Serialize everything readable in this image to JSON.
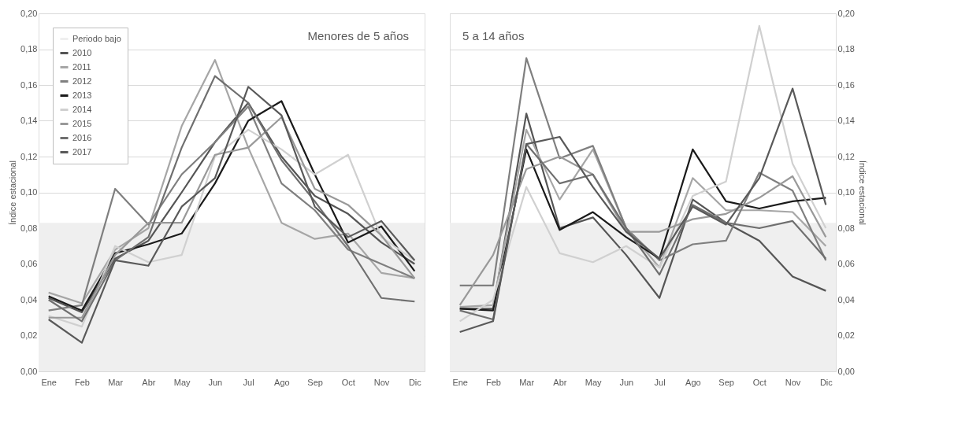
{
  "chart_data": [
    {
      "type": "line",
      "title": "Menores de 5 años",
      "ylabel": "Índice estacional",
      "categories": [
        "Ene",
        "Feb",
        "Mar",
        "Abr",
        "May",
        "Jun",
        "Jul",
        "Ago",
        "Sep",
        "Oct",
        "Nov",
        "Dic"
      ],
      "ylim": [
        0,
        0.2
      ],
      "yticks": [
        {
          "value": 0,
          "label": "0,00"
        },
        {
          "value": 0.02,
          "label": "0,02"
        },
        {
          "value": 0.04,
          "label": "0,04"
        },
        {
          "value": 0.06,
          "label": "0,06"
        },
        {
          "value": 0.08,
          "label": "0,08"
        },
        {
          "value": 0.1,
          "label": "0,10"
        },
        {
          "value": 0.12,
          "label": "0,12"
        },
        {
          "value": 0.14,
          "label": "0,14"
        },
        {
          "value": 0.16,
          "label": "0,16"
        },
        {
          "value": 0.18,
          "label": "0,18"
        },
        {
          "value": 0.2,
          "label": "0,20"
        }
      ],
      "grid": "y",
      "legend": "top left",
      "line_style": "solid",
      "bands": [
        {
          "axis": "y",
          "from": 0,
          "to": 0.083,
          "label": "Periodo bajo",
          "color": "#efefef"
        }
      ],
      "series": [
        {
          "name": "2010",
          "color": "#555555",
          "values": [
            0.041,
            0.033,
            0.063,
            0.073,
            0.1,
            0.128,
            0.15,
            0.12,
            0.098,
            0.088,
            0.072,
            0.06
          ]
        },
        {
          "name": "2011",
          "color": "#a6a6a6",
          "values": [
            0.044,
            0.038,
            0.068,
            0.08,
            0.137,
            0.174,
            0.125,
            0.083,
            0.074,
            0.077,
            0.055,
            0.052
          ]
        },
        {
          "name": "2012",
          "color": "#7f7f7f",
          "values": [
            0.034,
            0.037,
            0.102,
            0.082,
            0.11,
            0.128,
            0.148,
            0.105,
            0.09,
            0.068,
            0.06,
            0.052
          ]
        },
        {
          "name": "2013",
          "color": "#1a1a1a",
          "values": [
            0.042,
            0.034,
            0.066,
            0.071,
            0.077,
            0.105,
            0.14,
            0.151,
            0.11,
            0.072,
            0.081,
            0.056
          ]
        },
        {
          "name": "2014",
          "color": "#d0d0d0",
          "values": [
            0.031,
            0.025,
            0.07,
            0.061,
            0.065,
            0.12,
            0.135,
            0.124,
            0.11,
            0.121,
            0.075,
            0.062
          ]
        },
        {
          "name": "2015",
          "color": "#999999",
          "values": [
            0.03,
            0.03,
            0.065,
            0.083,
            0.083,
            0.121,
            0.125,
            0.142,
            0.102,
            0.093,
            0.076,
            0.052
          ]
        },
        {
          "name": "2016",
          "color": "#6f6f6f",
          "values": [
            0.04,
            0.028,
            0.062,
            0.075,
            0.125,
            0.165,
            0.15,
            0.118,
            0.095,
            0.07,
            0.041,
            0.039
          ]
        },
        {
          "name": "2017",
          "color": "#595959",
          "values": [
            0.029,
            0.016,
            0.062,
            0.059,
            0.092,
            0.108,
            0.159,
            0.143,
            0.092,
            0.075,
            0.084,
            0.062
          ]
        }
      ]
    },
    {
      "type": "line",
      "title": "5 a 14 años",
      "y2label": "Índice estacional",
      "categories": [
        "Ene",
        "Feb",
        "Mar",
        "Abr",
        "May",
        "Jun",
        "Jul",
        "Ago",
        "Sep",
        "Oct",
        "Nov",
        "Dic"
      ],
      "y2lim": [
        0,
        0.2
      ],
      "y2ticks": [
        {
          "value": 0,
          "label": "0,00"
        },
        {
          "value": 0.02,
          "label": "0,02"
        },
        {
          "value": 0.04,
          "label": "0,04"
        },
        {
          "value": 0.06,
          "label": "0,06"
        },
        {
          "value": 0.08,
          "label": "0,08"
        },
        {
          "value": 0.1,
          "label": "0,10"
        },
        {
          "value": 0.12,
          "label": "0,12"
        },
        {
          "value": 0.14,
          "label": "0,14"
        },
        {
          "value": 0.16,
          "label": "0,16"
        },
        {
          "value": 0.18,
          "label": "0,18"
        },
        {
          "value": 0.2,
          "label": "0,20"
        }
      ],
      "grid": "y",
      "line_style": "solid",
      "bands": [
        {
          "axis": "y2",
          "from": 0,
          "to": 0.083,
          "color": "#efefef"
        }
      ],
      "series": [
        {
          "axis": "y2",
          "color": "#555555",
          "values": [
            0.035,
            0.035,
            0.144,
            0.08,
            0.086,
            0.065,
            0.041,
            0.096,
            0.083,
            0.073,
            0.053,
            0.045
          ]
        },
        {
          "axis": "y2",
          "color": "#a6a6a6",
          "values": [
            0.036,
            0.037,
            0.135,
            0.096,
            0.124,
            0.08,
            0.058,
            0.108,
            0.09,
            0.09,
            0.089,
            0.07
          ]
        },
        {
          "axis": "y2",
          "color": "#7f7f7f",
          "values": [
            0.048,
            0.048,
            0.175,
            0.119,
            0.126,
            0.08,
            0.062,
            0.071,
            0.073,
            0.111,
            0.101,
            0.062
          ]
        },
        {
          "axis": "y2",
          "color": "#1a1a1a",
          "values": [
            0.035,
            0.034,
            0.124,
            0.079,
            0.089,
            0.075,
            0.063,
            0.124,
            0.095,
            0.091,
            0.095,
            0.097
          ]
        },
        {
          "axis": "y2",
          "color": "#d0d0d0",
          "values": [
            0.028,
            0.04,
            0.103,
            0.066,
            0.061,
            0.07,
            0.058,
            0.098,
            0.106,
            0.193,
            0.116,
            0.08
          ]
        },
        {
          "axis": "y2",
          "color": "#999999",
          "values": [
            0.037,
            0.065,
            0.113,
            0.12,
            0.11,
            0.078,
            0.078,
            0.085,
            0.088,
            0.097,
            0.109,
            0.075
          ]
        },
        {
          "axis": "y2",
          "color": "#6f6f6f",
          "values": [
            0.034,
            0.029,
            0.127,
            0.105,
            0.11,
            0.08,
            0.054,
            0.093,
            0.083,
            0.08,
            0.084,
            0.063
          ]
        },
        {
          "axis": "y2",
          "color": "#595959",
          "values": [
            0.022,
            0.028,
            0.127,
            0.131,
            0.103,
            0.078,
            0.063,
            0.092,
            0.082,
            0.108,
            0.158,
            0.093
          ]
        }
      ]
    }
  ]
}
